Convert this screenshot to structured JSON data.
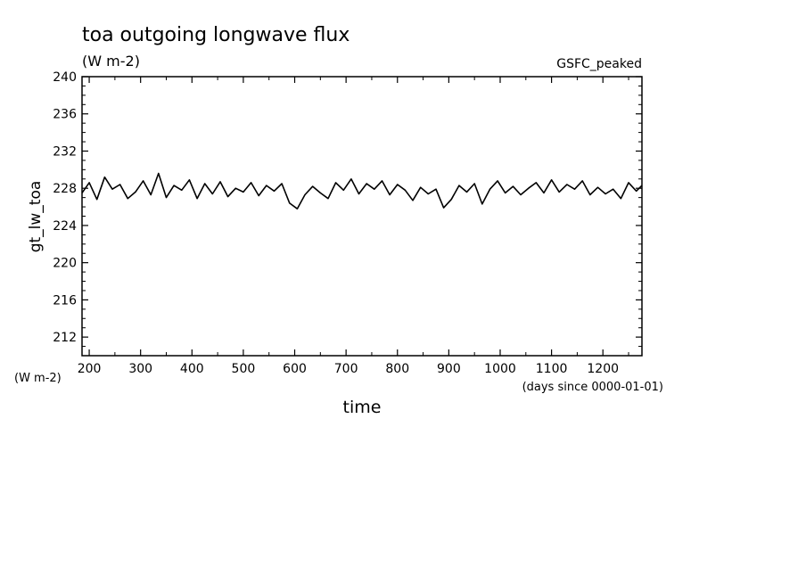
{
  "chart_data": {
    "type": "line",
    "title": "toa outgoing longwave flux",
    "subtitle": "(W m-2)",
    "annotation_right": "GSFC_peaked",
    "ylabel": "gt_lw_toa",
    "yunits": "(W m-2)",
    "xlabel": "time",
    "xunits": "(days since 0000-01-01)",
    "xlim": [
      186,
      1276
    ],
    "ylim": [
      210,
      240
    ],
    "x_ticks": [
      200,
      300,
      400,
      500,
      600,
      700,
      800,
      900,
      1000,
      1100,
      1200
    ],
    "x_tick_labels": [
      "200",
      "300",
      "400",
      "500",
      "600",
      "700",
      "800",
      "900",
      "1000",
      "1100",
      "1200"
    ],
    "y_ticks": [
      212,
      216,
      220,
      224,
      228,
      232,
      236,
      240
    ],
    "y_tick_labels": [
      "212",
      "216",
      "220",
      "224",
      "228",
      "232",
      "236",
      "240"
    ],
    "grid": false,
    "line_color": "#000000",
    "series": [
      {
        "x": [
          186,
          200,
          215,
          230,
          245,
          260,
          275,
          290,
          305,
          320,
          335,
          350,
          365,
          380,
          395,
          410,
          425,
          440,
          455,
          470,
          485,
          500,
          515,
          530,
          545,
          560,
          575,
          590,
          605,
          620,
          635,
          650,
          665,
          680,
          695,
          710,
          725,
          740,
          755,
          770,
          785,
          800,
          815,
          830,
          845,
          860,
          875,
          890,
          905,
          920,
          935,
          950,
          965,
          980,
          995,
          1010,
          1025,
          1040,
          1055,
          1070,
          1085,
          1100,
          1115,
          1130,
          1145,
          1160,
          1175,
          1190,
          1205,
          1220,
          1235,
          1250,
          1265,
          1276
        ],
        "y": [
          227.5,
          228.6,
          226.8,
          229.2,
          227.9,
          228.4,
          226.9,
          227.6,
          228.8,
          227.3,
          229.6,
          227.0,
          228.3,
          227.8,
          228.9,
          226.9,
          228.5,
          227.4,
          228.7,
          227.1,
          228.0,
          227.6,
          228.6,
          227.2,
          228.3,
          227.7,
          228.5,
          226.4,
          225.8,
          227.3,
          228.2,
          227.5,
          226.9,
          228.6,
          227.8,
          229.0,
          227.4,
          228.5,
          227.9,
          228.8,
          227.3,
          228.4,
          227.8,
          226.7,
          228.1,
          227.4,
          227.9,
          225.9,
          226.8,
          228.3,
          227.6,
          228.5,
          226.3,
          227.9,
          228.8,
          227.5,
          228.2,
          227.3,
          228.0,
          228.6,
          227.5,
          228.9,
          227.6,
          228.4,
          227.9,
          228.8,
          227.3,
          228.1,
          227.4,
          227.9,
          226.9,
          228.6,
          227.7,
          228.3
        ]
      }
    ]
  }
}
